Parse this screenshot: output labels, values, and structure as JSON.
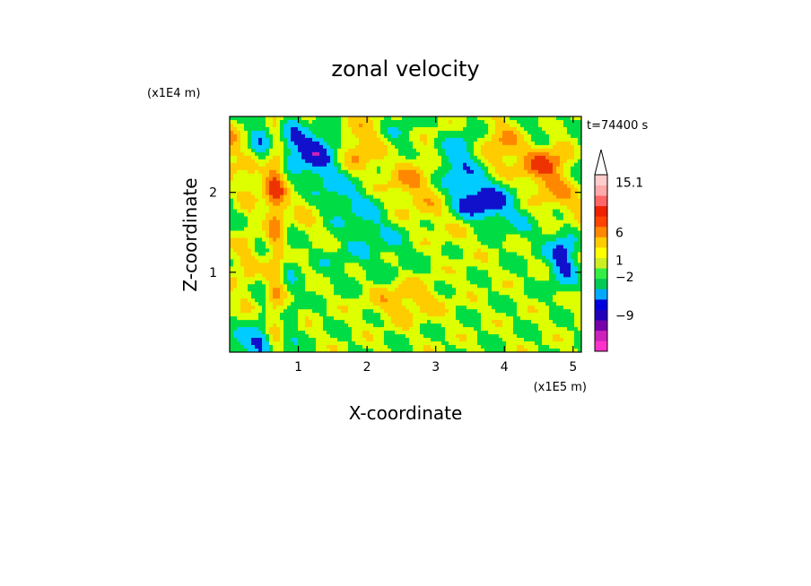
{
  "chart_data": {
    "type": "heatmap",
    "title": "zonal velocity",
    "xlabel": "X-coordinate",
    "ylabel": "Z-coordinate",
    "x_unit": "(x1E5 m)",
    "y_unit": "(x1E4 m)",
    "time_label": "t=74400 s",
    "x_ticks": [
      "1",
      "2",
      "3",
      "4",
      "5"
    ],
    "x_tick_values": [
      1,
      2,
      3,
      4,
      5
    ],
    "y_ticks": [
      "1",
      "2"
    ],
    "y_tick_values": [
      1,
      2
    ],
    "xlim": [
      0,
      5.12
    ],
    "ylim": [
      0,
      2.95
    ],
    "grid": false,
    "colorbar": {
      "levels": [
        "15.1",
        "6",
        "1",
        "−2",
        "−9"
      ],
      "level_values": [
        15.1,
        6,
        1,
        -2,
        -9
      ],
      "extend": "max",
      "colors": [
        "#ff33cc",
        "#cc22bb",
        "#7700aa",
        "#2200bb",
        "#0000dd",
        "#00aaff",
        "#00cc55",
        "#33ee44",
        "#ccee22",
        "#ffff00",
        "#ffcc00",
        "#ff8800",
        "#ff4400",
        "#ee2200",
        "#ff6666",
        "#ffaaaa",
        "#ffcccc"
      ]
    },
    "palette": {
      "strong_neg": "#cc22bb",
      "neg": "#1111cc",
      "weak_neg": "#00ccff",
      "near_zero": "#00dd44",
      "weak_pos": "#ddff00",
      "pos": "#ffcc00",
      "strong_pos": "#ff8800",
      "max_pos": "#ee3300"
    }
  }
}
